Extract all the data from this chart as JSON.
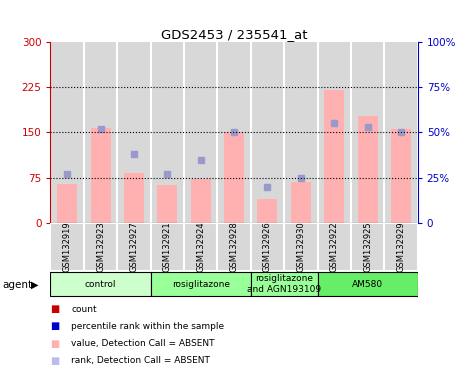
{
  "title": "GDS2453 / 235541_at",
  "samples": [
    "GSM132919",
    "GSM132923",
    "GSM132927",
    "GSM132921",
    "GSM132924",
    "GSM132928",
    "GSM132926",
    "GSM132930",
    "GSM132922",
    "GSM132925",
    "GSM132929"
  ],
  "bar_values": [
    65,
    157,
    83,
    62,
    73,
    150,
    40,
    68,
    220,
    178,
    155
  ],
  "bar_color": "#ffb0b0",
  "dot_values": [
    27,
    52,
    38,
    27,
    35,
    50,
    20,
    25,
    55,
    53,
    50
  ],
  "dot_color": "#9999cc",
  "ylim_left": [
    0,
    300
  ],
  "ylim_right": [
    0,
    100
  ],
  "yticks_left": [
    0,
    75,
    150,
    225,
    300
  ],
  "ytick_labels_left": [
    "0",
    "75",
    "150",
    "225",
    "300"
  ],
  "yticks_right": [
    0,
    25,
    50,
    75,
    100
  ],
  "ytick_labels_right": [
    "0",
    "25%",
    "50%",
    "75%",
    "100%"
  ],
  "left_tick_color": "#cc0000",
  "right_tick_color": "#0000cc",
  "agent_groups": [
    {
      "label": "control",
      "start": 0,
      "end": 3,
      "color": "#ccffcc"
    },
    {
      "label": "rosiglitazone",
      "start": 3,
      "end": 6,
      "color": "#99ff99"
    },
    {
      "label": "rosiglitazone\nand AGN193109",
      "start": 6,
      "end": 8,
      "color": "#99ff99"
    },
    {
      "label": "AM580",
      "start": 8,
      "end": 11,
      "color": "#66ee66"
    }
  ],
  "legend_colors": [
    "#cc0000",
    "#0000cc",
    "#ffb0b0",
    "#bbbbee"
  ],
  "legend_labels": [
    "count",
    "percentile rank within the sample",
    "value, Detection Call = ABSENT",
    "rank, Detection Call = ABSENT"
  ],
  "hline_y": [
    75,
    150,
    225
  ],
  "bar_width": 0.6,
  "col_bg": "#d8d8d8",
  "col_sep": "#ffffff",
  "plot_bg": "#ffffff"
}
